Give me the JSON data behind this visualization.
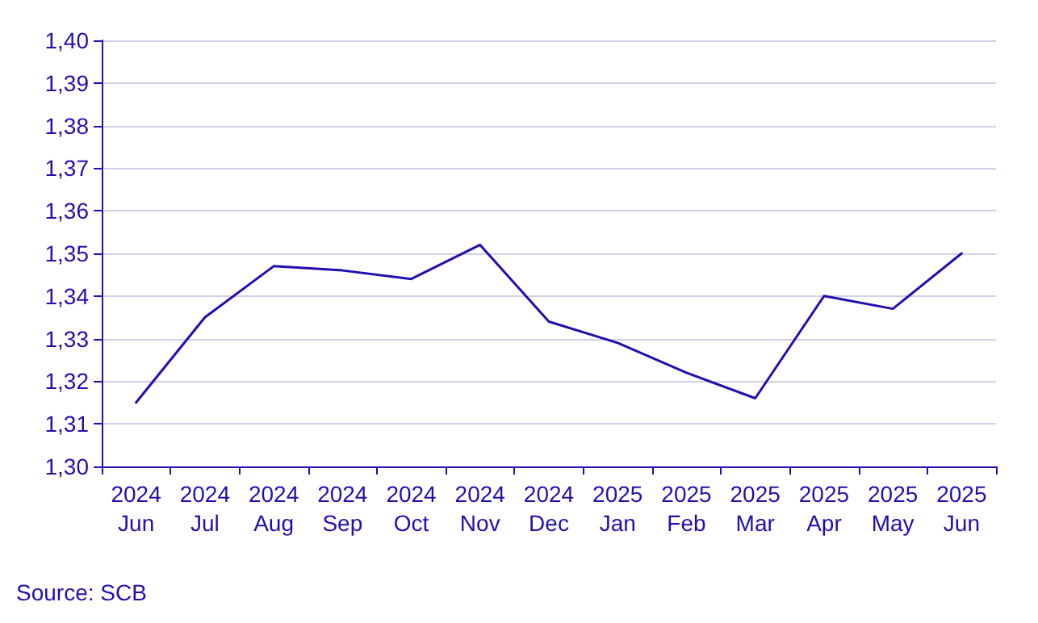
{
  "chart_data": {
    "type": "line",
    "categories": [
      "2024\nJun",
      "2024\nJul",
      "2024\nAug",
      "2024\nSep",
      "2024\nOct",
      "2024\nNov",
      "2024\nDec",
      "2025\nJan",
      "2025\nFeb",
      "2025\nMar",
      "2025\nApr",
      "2025\nMay",
      "2025\nJun"
    ],
    "series": [
      {
        "color": "#1e0fb0",
        "values": [
          1.315,
          1.335,
          1.347,
          1.346,
          1.344,
          1.352,
          1.334,
          1.329,
          1.322,
          1.316,
          1.34,
          1.337,
          1.35
        ]
      }
    ],
    "ylim": [
      1.3,
      1.4
    ],
    "yticks": [
      {
        "value": 1.3,
        "label": "1,30"
      },
      {
        "value": 1.31,
        "label": "1,31"
      },
      {
        "value": 1.32,
        "label": "1,32"
      },
      {
        "value": 1.33,
        "label": "1,33"
      },
      {
        "value": 1.34,
        "label": "1,34"
      },
      {
        "value": 1.35,
        "label": "1,35"
      },
      {
        "value": 1.36,
        "label": "1,36"
      },
      {
        "value": 1.37,
        "label": "1,37"
      },
      {
        "value": 1.38,
        "label": "1,38"
      },
      {
        "value": 1.39,
        "label": "1,39"
      },
      {
        "value": 1.4,
        "label": "1,40"
      }
    ],
    "grid": "y",
    "marker": "none",
    "line_style": "solid",
    "annotations": [
      "Source: SCB"
    ]
  }
}
